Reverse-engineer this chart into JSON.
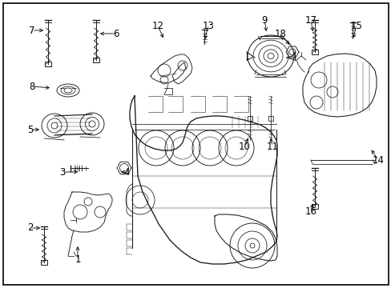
{
  "background_color": "#ffffff",
  "border_color": "#000000",
  "line_color": "#1a1a1a",
  "text_color": "#000000",
  "font_size": 8.5,
  "fig_width": 4.89,
  "fig_height": 3.6,
  "dpi": 100
}
